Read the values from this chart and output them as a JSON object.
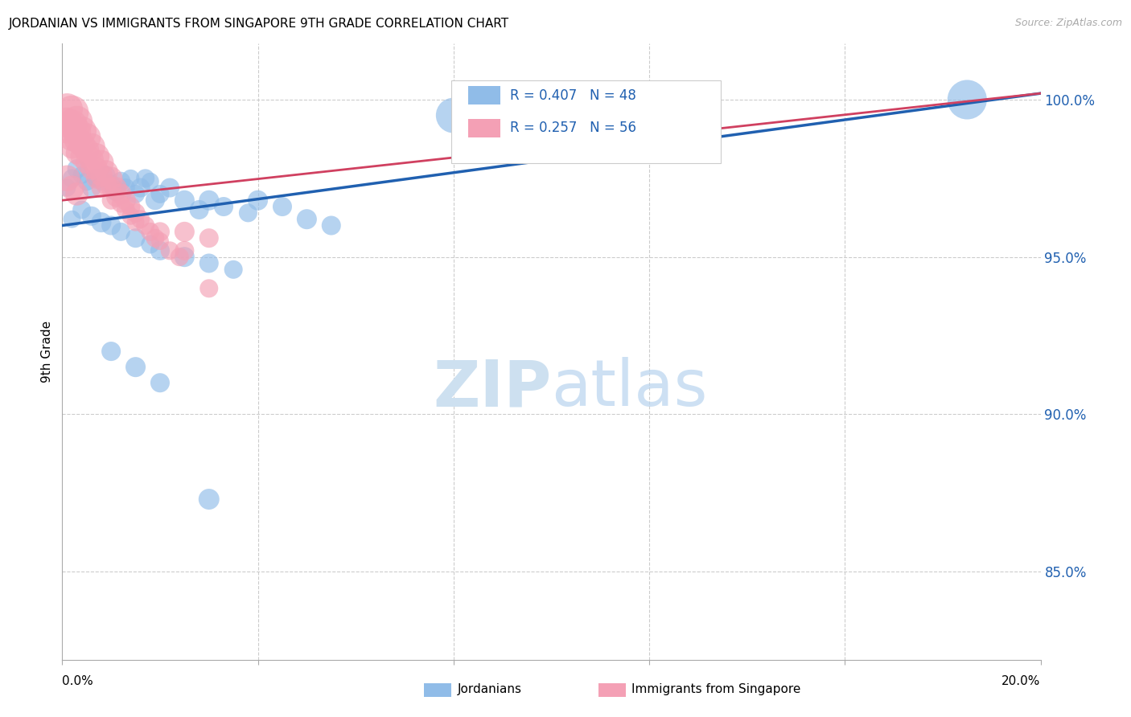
{
  "title": "JORDANIAN VS IMMIGRANTS FROM SINGAPORE 9TH GRADE CORRELATION CHART",
  "source": "Source: ZipAtlas.com",
  "ylabel": "9th Grade",
  "yaxis_values": [
    1.0,
    0.95,
    0.9,
    0.85
  ],
  "xmin": 0.0,
  "xmax": 0.2,
  "ymin": 0.822,
  "ymax": 1.018,
  "blue_color": "#90bce8",
  "pink_color": "#f4a0b5",
  "blue_line_color": "#2060b0",
  "pink_line_color": "#d04060",
  "legend_text_color": "#2060b0",
  "watermark_color": "#cde0f0",
  "blue_scatter_x": [
    0.001,
    0.002,
    0.003,
    0.004,
    0.005,
    0.006,
    0.007,
    0.008,
    0.009,
    0.01,
    0.011,
    0.012,
    0.013,
    0.014,
    0.015,
    0.016,
    0.017,
    0.018,
    0.019,
    0.02,
    0.022,
    0.025,
    0.028,
    0.03,
    0.033,
    0.038,
    0.04,
    0.045,
    0.05,
    0.055,
    0.002,
    0.004,
    0.006,
    0.008,
    0.01,
    0.012,
    0.015,
    0.018,
    0.02,
    0.025,
    0.03,
    0.035,
    0.01,
    0.015,
    0.02,
    0.03,
    0.08,
    0.185
  ],
  "blue_scatter_y": [
    0.972,
    0.975,
    0.978,
    0.976,
    0.974,
    0.972,
    0.975,
    0.974,
    0.976,
    0.973,
    0.971,
    0.974,
    0.972,
    0.975,
    0.97,
    0.972,
    0.975,
    0.974,
    0.968,
    0.97,
    0.972,
    0.968,
    0.965,
    0.968,
    0.966,
    0.964,
    0.968,
    0.966,
    0.962,
    0.96,
    0.962,
    0.965,
    0.963,
    0.961,
    0.96,
    0.958,
    0.956,
    0.954,
    0.952,
    0.95,
    0.948,
    0.946,
    0.92,
    0.915,
    0.91,
    0.873,
    0.995,
    1.0
  ],
  "blue_scatter_size": [
    50,
    55,
    60,
    50,
    55,
    60,
    55,
    50,
    55,
    60,
    65,
    60,
    55,
    50,
    55,
    60,
    55,
    50,
    60,
    55,
    60,
    65,
    60,
    65,
    60,
    55,
    65,
    60,
    65,
    60,
    50,
    55,
    60,
    65,
    60,
    55,
    60,
    55,
    60,
    65,
    60,
    55,
    60,
    65,
    60,
    70,
    200,
    250
  ],
  "pink_scatter_x": [
    0.001,
    0.001,
    0.001,
    0.002,
    0.002,
    0.002,
    0.002,
    0.003,
    0.003,
    0.003,
    0.003,
    0.004,
    0.004,
    0.004,
    0.005,
    0.005,
    0.005,
    0.006,
    0.006,
    0.006,
    0.007,
    0.007,
    0.007,
    0.008,
    0.008,
    0.008,
    0.009,
    0.009,
    0.01,
    0.01,
    0.01,
    0.011,
    0.011,
    0.012,
    0.012,
    0.013,
    0.013,
    0.014,
    0.014,
    0.015,
    0.015,
    0.016,
    0.017,
    0.018,
    0.019,
    0.02,
    0.02,
    0.022,
    0.024,
    0.025,
    0.001,
    0.002,
    0.003,
    0.025,
    0.03,
    0.03
  ],
  "pink_scatter_y": [
    0.997,
    0.993,
    0.99,
    0.996,
    0.992,
    0.988,
    0.985,
    0.993,
    0.99,
    0.987,
    0.983,
    0.99,
    0.986,
    0.982,
    0.988,
    0.984,
    0.98,
    0.985,
    0.981,
    0.978,
    0.982,
    0.978,
    0.975,
    0.98,
    0.976,
    0.972,
    0.977,
    0.973,
    0.975,
    0.972,
    0.968,
    0.972,
    0.969,
    0.97,
    0.967,
    0.968,
    0.965,
    0.966,
    0.963,
    0.964,
    0.961,
    0.962,
    0.96,
    0.958,
    0.956,
    0.958,
    0.955,
    0.952,
    0.95,
    0.952,
    0.975,
    0.972,
    0.97,
    0.958,
    0.956,
    0.94
  ],
  "pink_scatter_size": [
    160,
    130,
    100,
    180,
    150,
    120,
    90,
    160,
    130,
    100,
    80,
    140,
    110,
    85,
    130,
    100,
    80,
    120,
    95,
    75,
    110,
    85,
    70,
    100,
    80,
    65,
    90,
    70,
    85,
    65,
    55,
    75,
    60,
    70,
    55,
    65,
    55,
    60,
    50,
    60,
    50,
    55,
    55,
    55,
    55,
    60,
    50,
    55,
    55,
    60,
    110,
    95,
    85,
    65,
    60,
    55
  ],
  "blue_trendline_x": [
    0.0,
    0.2
  ],
  "blue_trendline_y": [
    0.96,
    1.002
  ],
  "pink_trendline_x": [
    0.0,
    0.2
  ],
  "pink_trendline_y": [
    0.968,
    1.002
  ]
}
